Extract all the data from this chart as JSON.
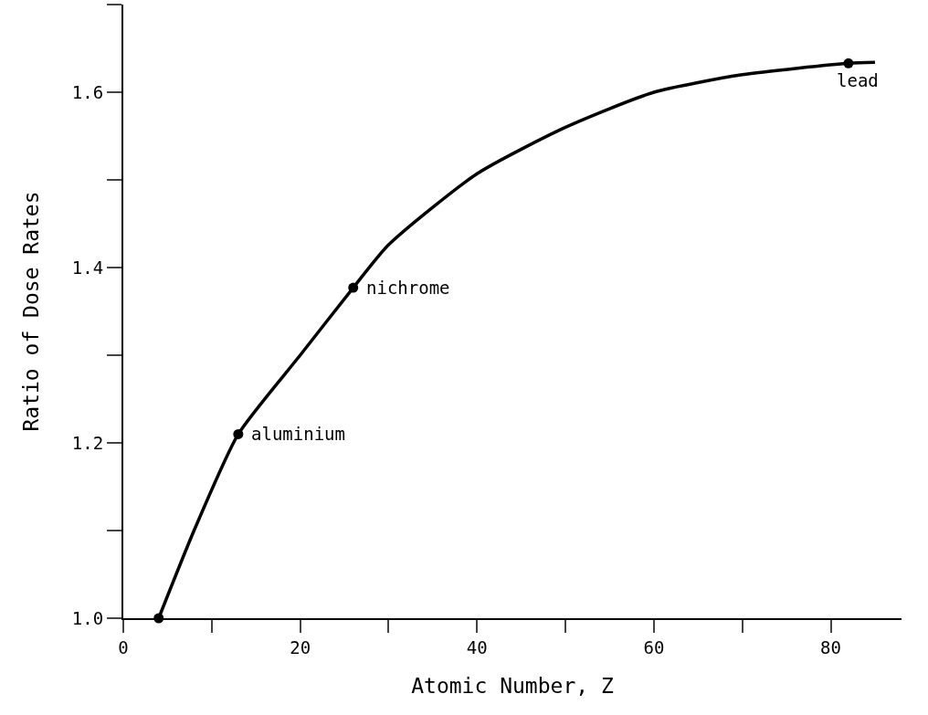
{
  "chart_data": {
    "type": "line",
    "xlabel": "Atomic Number, Z",
    "ylabel": "Ratio of Dose Rates",
    "series": [
      {
        "color": "#000000",
        "marker": "none",
        "line_style": "solid",
        "x": [
          4,
          8,
          13,
          20,
          26,
          30,
          40,
          50,
          60,
          70,
          82,
          85
        ],
        "values": [
          1.0,
          1.1,
          1.21,
          1.3,
          1.377,
          1.426,
          1.507,
          1.56,
          1.6,
          1.62,
          1.633,
          1.634
        ]
      },
      {
        "type": "scatter",
        "color": "#000000",
        "marker": "circle",
        "x": [
          4,
          13,
          26,
          82
        ],
        "values": [
          1.0,
          1.21,
          1.377,
          1.633
        ]
      }
    ],
    "annotations": [
      {
        "text": "aluminium",
        "x": 13,
        "y": 1.21
      },
      {
        "text": "nichrome",
        "x": 26,
        "y": 1.377
      },
      {
        "text": "lead",
        "x": 82,
        "y": 1.633
      }
    ],
    "xlim": [
      0,
      88
    ],
    "ylim": [
      1.0,
      1.7
    ],
    "xticks": [
      0,
      {
        "value": 10,
        "label": null
      },
      20,
      {
        "value": 30,
        "label": null
      },
      40,
      {
        "value": 50,
        "label": null
      },
      60,
      {
        "value": 70,
        "label": null
      },
      80
    ],
    "yticks": [
      {
        "value": 1.0,
        "label": "1.0"
      },
      {
        "value": 1.1,
        "label": null
      },
      1.2,
      {
        "value": 1.3,
        "label": null
      },
      1.4,
      {
        "value": 1.5,
        "label": null
      },
      1.6,
      {
        "value": 1.7,
        "label": null
      }
    ],
    "grid": false
  }
}
